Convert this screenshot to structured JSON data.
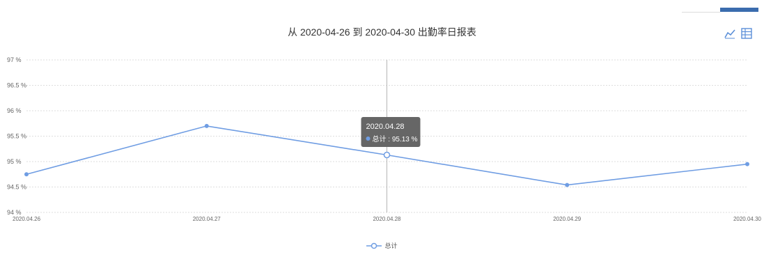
{
  "title": "从 2020-04-26 到 2020-04-30 出勤率日报表",
  "toolbox": {
    "icons": [
      "line-chart-icon",
      "data-view-icon"
    ],
    "color": "#5b8fd8"
  },
  "tooltip": {
    "date": "2020.04.28",
    "series_label": "总计 : 95.13 %"
  },
  "legend": {
    "label": "总计"
  },
  "colors": {
    "line": "#6f9de3",
    "grid": "#dddddd",
    "axis_text": "#666666",
    "tooltip_bg": "#666666"
  },
  "chart_data": {
    "type": "line",
    "categories": [
      "2020.04.26",
      "2020.04.27",
      "2020.04.28",
      "2020.04.29",
      "2020.04.30"
    ],
    "series": [
      {
        "name": "总计",
        "values": [
          94.75,
          95.7,
          95.13,
          94.54,
          94.95
        ]
      }
    ],
    "y_ticks": [
      "97 %",
      "96.5 %",
      "96 %",
      "95.5 %",
      "95 %",
      "94.5 %",
      "94 %"
    ],
    "ylim": [
      94,
      97
    ],
    "y_unit": "%",
    "grid": true,
    "highlighted_category": "2020.04.28",
    "legend_position": "bottom-center"
  }
}
